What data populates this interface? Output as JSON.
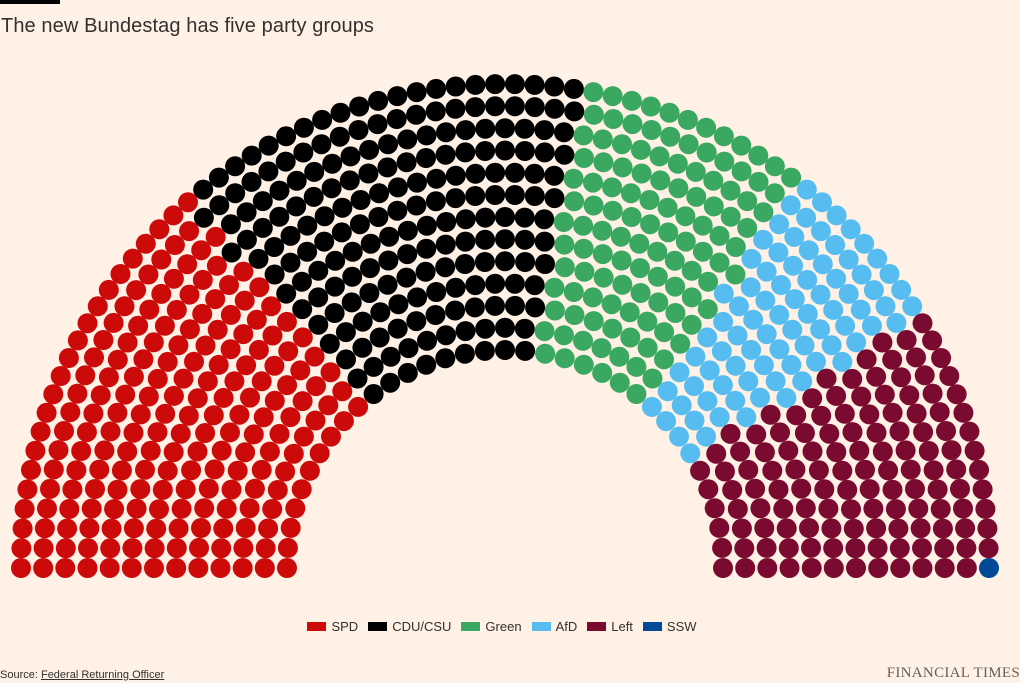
{
  "header": {
    "title": "The new Bundestag has five party groups"
  },
  "chart_data": {
    "type": "parliament",
    "title": "The new Bundestag has five party groups",
    "total_seats": 735,
    "series": [
      {
        "name": "SPD",
        "seats": 206,
        "color": "#cc0a0a"
      },
      {
        "name": "CDU/CSU",
        "seats": 197,
        "color": "#000000"
      },
      {
        "name": "Green",
        "seats": 118,
        "color": "#3aa860"
      },
      {
        "name": "AfD",
        "seats": 83,
        "color": "#57bdf1"
      },
      {
        "name": "Left",
        "seats": 130,
        "color": "#7a0a2f"
      },
      {
        "name": "SSW",
        "seats": 1,
        "color": "#004a98"
      }
    ],
    "legend_position": "bottom-center"
  },
  "footer": {
    "source_prefix": "Source: ",
    "source_link": "Federal Returning Officer",
    "brand": "FINANCIAL TIMES"
  }
}
